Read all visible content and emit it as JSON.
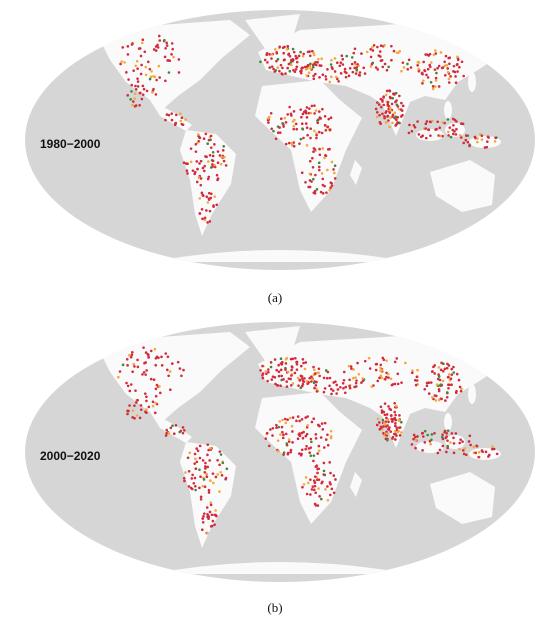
{
  "panels": [
    {
      "period": "1980−2000",
      "caption": "(a)"
    },
    {
      "period": "2000−2020",
      "caption": "(b)"
    }
  ]
}
